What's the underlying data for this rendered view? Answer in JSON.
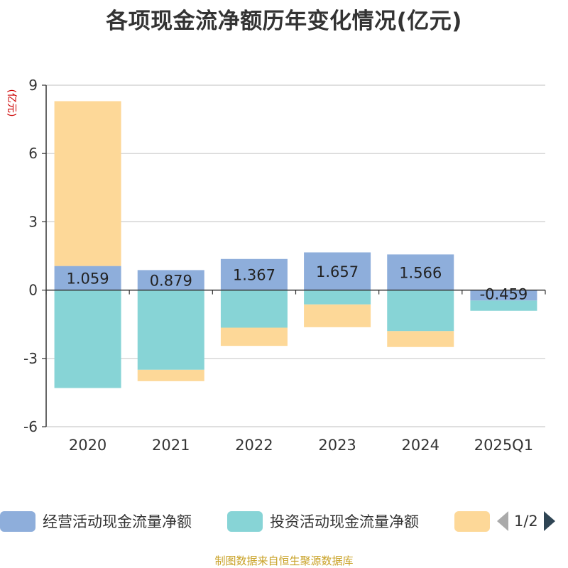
{
  "chart_data": {
    "type": "bar",
    "stacked": true,
    "title": "各项现金流净额历年变化情况(亿元)",
    "ylabel": "(亿元)",
    "ylim": [
      -6,
      9
    ],
    "yticks": [
      9,
      6,
      3,
      0,
      -3,
      -6
    ],
    "grid": true,
    "categories": [
      "2020",
      "2021",
      "2022",
      "2023",
      "2024",
      "2025Q1"
    ],
    "series": [
      {
        "name": "经营活动现金流量净额",
        "color": "#8eaedb",
        "values": [
          1.059,
          0.879,
          1.367,
          1.657,
          1.566,
          -0.459
        ],
        "labels": [
          "1.059",
          "0.879",
          "1.367",
          "1.657",
          "1.566",
          "-0.459"
        ]
      },
      {
        "name": "投资活动现金流量净额",
        "color": "#87d4d6",
        "values": [
          -4.3,
          -3.5,
          -1.65,
          -0.63,
          -1.8,
          -0.45
        ]
      },
      {
        "name": "",
        "color": "#fdd898",
        "values": [
          7.24,
          -0.5,
          -0.8,
          -1.0,
          -0.7,
          0
        ]
      }
    ]
  },
  "legend": {
    "items": [
      {
        "label": "经营活动现金流量净额",
        "color": "#8eaedb"
      },
      {
        "label": "投资活动现金流量净额",
        "color": "#87d4d6"
      },
      {
        "label": "",
        "color": "#fdd898"
      }
    ],
    "page": "1/2"
  },
  "source": "制图数据来自恒生聚源数据库"
}
